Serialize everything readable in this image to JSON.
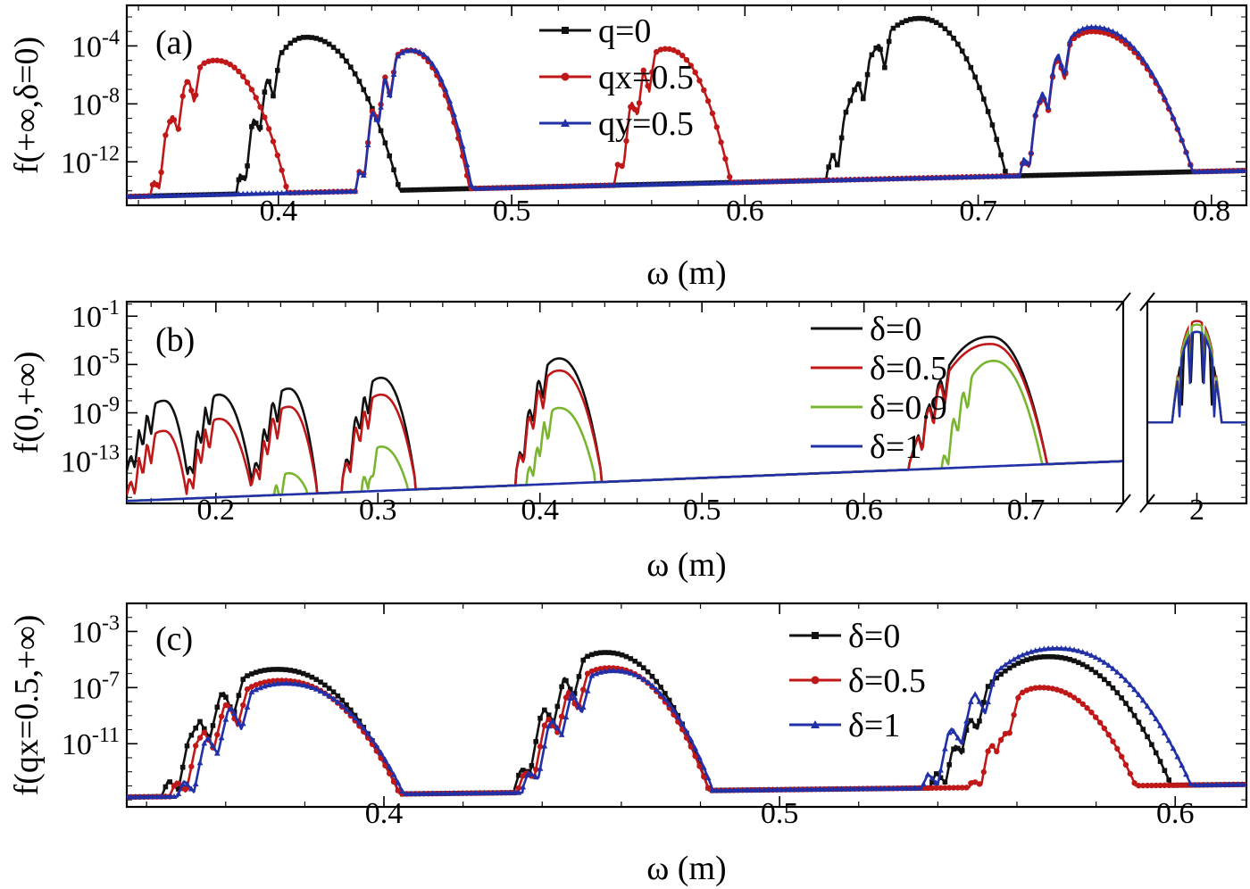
{
  "colors": {
    "black": "#111111",
    "red": "#c01818",
    "blue": "#2230a8",
    "green": "#7ab530"
  },
  "chart_data": [
    {
      "type": "line",
      "panel_label": "(a)",
      "xlabel": "ω (m)",
      "ylabel": "f(+∞,δ=0)",
      "xlim": [
        0.335,
        0.815
      ],
      "ylim": [
        -15,
        -1.2
      ],
      "log_y": true,
      "x_ticks": [
        "0.4",
        "0.5",
        "0.6",
        "0.7",
        "0.8"
      ],
      "y_ticks": [
        "10-4",
        "10-8",
        "10-12"
      ],
      "legend": {
        "position": "top-center",
        "entries": [
          "q=0",
          "qx=0.5",
          "qy=0.5"
        ]
      },
      "series": [
        {
          "name": "q=0",
          "color": "#111111",
          "marker": "square",
          "base": [
            [
              0.335,
              -14.4
            ],
            [
              0.815,
              -12.6
            ]
          ],
          "peaks": [
            {
              "x0": 0.382,
              "xp": 0.412,
              "x1": 0.452,
              "peak": -3.4,
              "floor": -14.0,
              "dips": [
                0.386,
                0.392,
                0.398
              ]
            },
            {
              "x0": 0.635,
              "xp": 0.675,
              "x1": 0.712,
              "peak": -2.1,
              "floor": -12.9,
              "dips": [
                0.64,
                0.651,
                0.66
              ]
            }
          ]
        },
        {
          "name": "qx=0.5",
          "color": "#c01818",
          "marker": "circle",
          "base": [
            [
              0.335,
              -14.4
            ],
            [
              0.815,
              -12.6
            ]
          ],
          "peaks": [
            {
              "x0": 0.345,
              "xp": 0.373,
              "x1": 0.404,
              "peak": -5.0,
              "floor": -14.5,
              "dips": [
                0.349,
                0.357,
                0.364
              ]
            },
            {
              "x0": 0.433,
              "xp": 0.456,
              "x1": 0.482,
              "peak": -4.3,
              "floor": -14.1,
              "dips": [
                0.437,
                0.443,
                0.448
              ]
            },
            {
              "x0": 0.544,
              "xp": 0.566,
              "x1": 0.594,
              "peak": -4.2,
              "floor": -13.5,
              "dips": [
                0.548,
                0.554,
                0.559
              ]
            },
            {
              "x0": 0.718,
              "xp": 0.749,
              "x1": 0.792,
              "peak": -3.0,
              "floor": -12.8,
              "dips": [
                0.722,
                0.73,
                0.737
              ]
            }
          ]
        },
        {
          "name": "qy=0.5",
          "color": "#2230a8",
          "marker": "triangle",
          "base": [
            [
              0.335,
              -14.4
            ],
            [
              0.815,
              -12.6
            ]
          ],
          "peaks": [
            {
              "x0": 0.433,
              "xp": 0.457,
              "x1": 0.483,
              "peak": -4.3,
              "floor": -14.1,
              "dips": [
                0.437,
                0.443,
                0.448
              ]
            },
            {
              "x0": 0.718,
              "xp": 0.749,
              "x1": 0.792,
              "peak": -2.7,
              "floor": -12.8,
              "dips": [
                0.722,
                0.73,
                0.737
              ]
            }
          ]
        }
      ]
    },
    {
      "type": "line",
      "panel_label": "(b)",
      "xlabel": "ω (m)",
      "ylabel": "f(0,+∞)",
      "xlim": [
        0.145,
        0.76
      ],
      "break_xlim": [
        1.9,
        2.1
      ],
      "ylim": [
        -16.5,
        0.2
      ],
      "log_y": true,
      "x_ticks": [
        "0.2",
        "0.3",
        "0.4",
        "0.5",
        "0.6",
        "0.7",
        "2"
      ],
      "y_ticks": [
        "10-1",
        "10-5",
        "10-9",
        "10-13"
      ],
      "legend": {
        "position": "top-right",
        "entries": [
          "δ=0",
          "δ=0.5",
          "δ=0.9",
          "δ=1"
        ]
      },
      "series": [
        {
          "name": "δ=0",
          "color": "#111111",
          "base": [
            [
              0.145,
              -16.3
            ],
            [
              0.76,
              -13.0
            ]
          ],
          "peaks": [
            {
              "x0": 0.145,
              "xp": 0.168,
              "x1": 0.182,
              "peak": -8.0,
              "floor": -13.8,
              "dips": [
                0.15,
                0.155,
                0.16
              ]
            },
            {
              "x0": 0.182,
              "xp": 0.202,
              "x1": 0.222,
              "peak": -7.5,
              "floor": -14.5,
              "dips": [
                0.186,
                0.191,
                0.196
              ]
            },
            {
              "x0": 0.222,
              "xp": 0.245,
              "x1": 0.262,
              "peak": -7.0,
              "floor": -14.8,
              "dips": [
                0.227,
                0.232,
                0.238
              ]
            },
            {
              "x0": 0.278,
              "xp": 0.302,
              "x1": 0.323,
              "peak": -6.1,
              "floor": -14.6,
              "dips": [
                0.283,
                0.289,
                0.294
              ]
            },
            {
              "x0": 0.385,
              "xp": 0.412,
              "x1": 0.438,
              "peak": -4.5,
              "floor": -14.1,
              "dips": [
                0.39,
                0.396,
                0.402
              ]
            },
            {
              "x0": 0.628,
              "xp": 0.678,
              "x1": 0.713,
              "peak": -2.7,
              "floor": -13.2,
              "dips": [
                0.636,
                0.643,
                0.65
              ]
            }
          ]
        },
        {
          "name": "δ=0.5",
          "color": "#c01818",
          "base": [
            [
              0.145,
              -16.3
            ],
            [
              0.76,
              -13.0
            ]
          ],
          "peaks": [
            {
              "x0": 0.145,
              "xp": 0.168,
              "x1": 0.182,
              "peak": -10.5,
              "floor": -15.8,
              "dips": [
                0.15,
                0.155,
                0.16
              ]
            },
            {
              "x0": 0.182,
              "xp": 0.202,
              "x1": 0.222,
              "peak": -9.5,
              "floor": -15.3,
              "dips": [
                0.186,
                0.191,
                0.196
              ]
            },
            {
              "x0": 0.222,
              "xp": 0.245,
              "x1": 0.262,
              "peak": -8.5,
              "floor": -15.0,
              "dips": [
                0.227,
                0.232,
                0.238
              ]
            },
            {
              "x0": 0.278,
              "xp": 0.302,
              "x1": 0.323,
              "peak": -7.5,
              "floor": -14.6,
              "dips": [
                0.283,
                0.289,
                0.294
              ]
            },
            {
              "x0": 0.385,
              "xp": 0.412,
              "x1": 0.438,
              "peak": -5.5,
              "floor": -14.1,
              "dips": [
                0.39,
                0.396,
                0.402
              ]
            },
            {
              "x0": 0.628,
              "xp": 0.678,
              "x1": 0.713,
              "peak": -3.3,
              "floor": -13.2,
              "dips": [
                0.636,
                0.643,
                0.65
              ]
            }
          ]
        },
        {
          "name": "δ=0.9",
          "color": "#7ab530",
          "base": [
            [
              0.145,
              -16.3
            ],
            [
              0.76,
              -13.0
            ]
          ],
          "peaks": [
            {
              "x0": 0.236,
              "xp": 0.245,
              "x1": 0.256,
              "peak": -14.0,
              "floor": -15.4,
              "dips": [
                0.24
              ]
            },
            {
              "x0": 0.29,
              "xp": 0.302,
              "x1": 0.318,
              "peak": -11.8,
              "floor": -15.0,
              "dips": [
                0.294,
                0.297
              ]
            },
            {
              "x0": 0.392,
              "xp": 0.412,
              "x1": 0.434,
              "peak": -8.6,
              "floor": -14.3,
              "dips": [
                0.396,
                0.4,
                0.405
              ]
            },
            {
              "x0": 0.648,
              "xp": 0.68,
              "x1": 0.71,
              "peak": -4.7,
              "floor": -13.3,
              "dips": [
                0.652,
                0.658,
                0.664
              ]
            }
          ]
        },
        {
          "name": "δ=1",
          "color": "#2230a8",
          "base": [
            [
              0.145,
              -16.3
            ],
            [
              0.76,
              -13.0
            ]
          ],
          "peaks": []
        }
      ],
      "break_series": [
        {
          "name": "δ=0",
          "color": "#111111",
          "base": -9.8,
          "xp": 2.0,
          "half": 0.05,
          "peak": -2.3,
          "dips": [
            -0.03,
            -0.012,
            0.012,
            0.03
          ]
        },
        {
          "name": "δ=0.5",
          "color": "#c01818",
          "base": -9.8,
          "xp": 2.0,
          "half": 0.05,
          "peak": -1.4,
          "dips": [
            -0.035,
            -0.014,
            0.014,
            0.035
          ]
        },
        {
          "name": "δ=0.9",
          "color": "#7ab530",
          "base": -9.8,
          "xp": 2.0,
          "half": 0.05,
          "peak": -1.7,
          "dips": [
            -0.035,
            -0.014,
            0.014,
            0.035
          ]
        },
        {
          "name": "δ=1",
          "color": "#2230a8",
          "base": -9.8,
          "xp": 2.0,
          "half": 0.05,
          "peak": -2.3,
          "dips": [
            -0.035,
            -0.014,
            0.014,
            0.035
          ]
        }
      ]
    },
    {
      "type": "line",
      "panel_label": "(c)",
      "xlabel": "ω (m)",
      "ylabel": "f(qx=0.5,+∞)",
      "xlim": [
        0.335,
        0.618
      ],
      "ylim": [
        -15.5,
        -1.0
      ],
      "log_y": true,
      "x_ticks": [
        "0.4",
        "0.5",
        "0.6"
      ],
      "y_ticks": [
        "10-3",
        "10-7",
        "10-11"
      ],
      "legend": {
        "position": "top-right",
        "entries": [
          "δ=0",
          "δ=0.5",
          "δ=1"
        ]
      },
      "series": [
        {
          "name": "δ=0",
          "color": "#111111",
          "marker": "square",
          "base": [
            [
              0.335,
              -14.8
            ],
            [
              0.618,
              -13.9
            ]
          ],
          "peaks": [
            {
              "x0": 0.344,
              "xp": 0.373,
              "x1": 0.404,
              "peak": -5.7,
              "floor": -14.6,
              "dips": [
                0.348,
                0.356,
                0.362
              ]
            },
            {
              "x0": 0.433,
              "xp": 0.456,
              "x1": 0.482,
              "peak": -4.5,
              "floor": -14.2,
              "dips": [
                0.437,
                0.443,
                0.448
              ]
            },
            {
              "x0": 0.538,
              "xp": 0.568,
              "x1": 0.599,
              "peak": -4.8,
              "floor": -14.1,
              "dips": [
                0.542,
                0.546,
                0.55
              ]
            }
          ]
        },
        {
          "name": "δ=0.5",
          "color": "#c01818",
          "marker": "circle",
          "base": [
            [
              0.335,
              -14.8
            ],
            [
              0.618,
              -13.9
            ]
          ],
          "peaks": [
            {
              "x0": 0.346,
              "xp": 0.374,
              "x1": 0.404,
              "peak": -6.5,
              "floor": -14.6,
              "dips": [
                0.35,
                0.357,
                0.363
              ]
            },
            {
              "x0": 0.434,
              "xp": 0.457,
              "x1": 0.482,
              "peak": -5.6,
              "floor": -14.2,
              "dips": [
                0.438,
                0.444,
                0.449
              ]
            },
            {
              "x0": 0.548,
              "xp": 0.566,
              "x1": 0.59,
              "peak": -7.0,
              "floor": -14.1,
              "dips": [
                0.551,
                0.555,
                0.558
              ]
            }
          ]
        },
        {
          "name": "δ=1",
          "color": "#2230a8",
          "marker": "triangle",
          "base": [
            [
              0.335,
              -14.8
            ],
            [
              0.618,
              -13.9
            ]
          ],
          "peaks": [
            {
              "x0": 0.348,
              "xp": 0.375,
              "x1": 0.405,
              "peak": -6.7,
              "floor": -14.6,
              "dips": [
                0.352,
                0.358,
                0.364
              ]
            },
            {
              "x0": 0.435,
              "xp": 0.458,
              "x1": 0.483,
              "peak": -5.8,
              "floor": -14.2,
              "dips": [
                0.439,
                0.445,
                0.45
              ]
            },
            {
              "x0": 0.536,
              "xp": 0.57,
              "x1": 0.604,
              "peak": -4.2,
              "floor": -14.1,
              "dips": [
                0.54,
                0.546,
                0.552
              ]
            }
          ]
        }
      ]
    }
  ]
}
